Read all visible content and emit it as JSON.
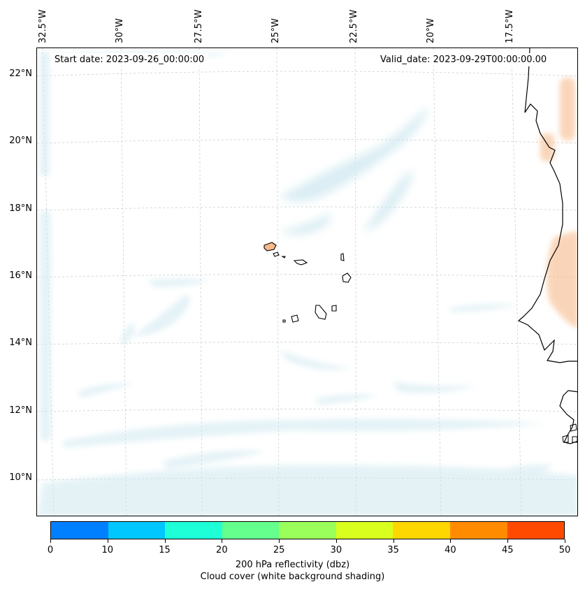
{
  "map": {
    "start_date": "Start date: 2023-09-26_00:00:00",
    "valid_date": "Valid_date: 2023-09-29T00:00:00.00",
    "longitude_labels": [
      "32.5°W",
      "30°W",
      "27.5°W",
      "25°W",
      "22.5°W",
      "20°W",
      "17.5°W"
    ],
    "latitude_labels": [
      "22°N",
      "20°N",
      "18°N",
      "16°N",
      "14°N",
      "12°N",
      "10°N"
    ],
    "cloud_color": "#cfe8f0",
    "land_reflectivity_color": "#f6b98a"
  },
  "colorbar": {
    "ticks": [
      "0",
      "10",
      "15",
      "20",
      "25",
      "30",
      "35",
      "40",
      "45",
      "50"
    ],
    "colors": [
      "#0080ff",
      "#00c8ff",
      "#1effd8",
      "#64ff8c",
      "#9aff5a",
      "#d8ff1e",
      "#ffd700",
      "#ff8c00",
      "#ff4a00"
    ],
    "label": "200 hPa reflectivity (dbz)",
    "sublabel": "Cloud cover (white background shading)"
  }
}
